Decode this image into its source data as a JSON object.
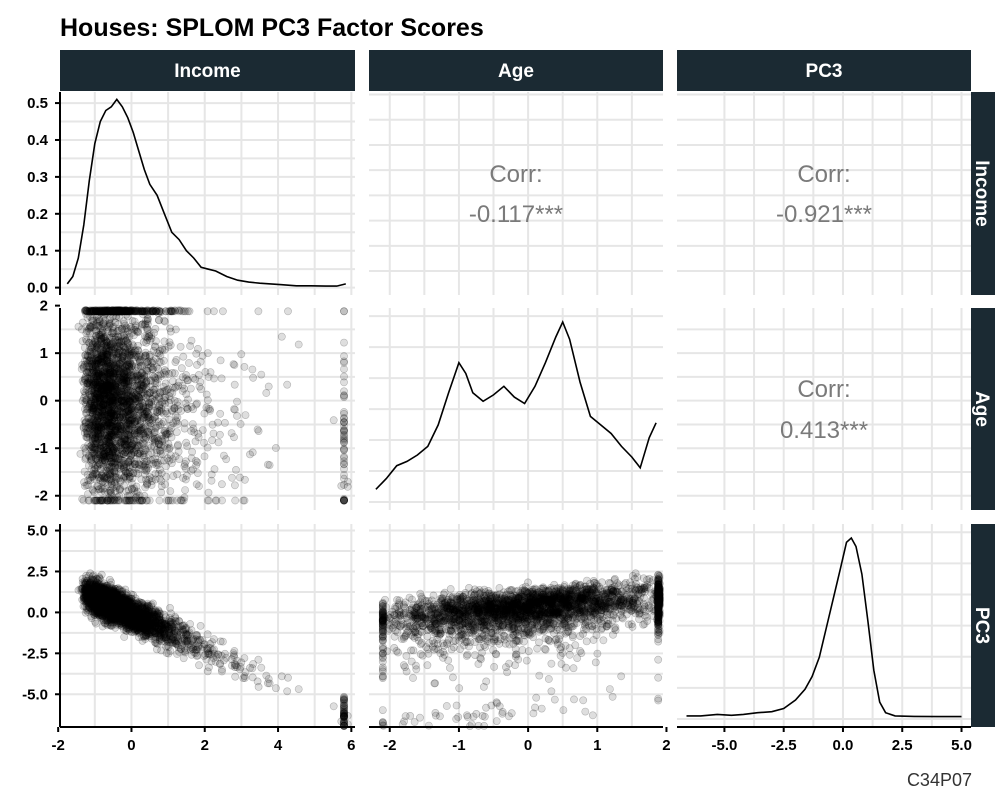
{
  "chart_data": {
    "type": "scatter-matrix",
    "title": "Houses: SPLOM PC3 Factor Scores",
    "caption": "C34P07",
    "variables": [
      "Income",
      "Age",
      "PC3"
    ],
    "strip_labels": {
      "top": [
        "Income",
        "Age",
        "PC3"
      ],
      "right": [
        "Income",
        "Age",
        "PC3"
      ]
    },
    "axes": {
      "Income": {
        "range": [
          -1.95,
          6.1
        ],
        "ticks": [
          -2,
          0,
          2,
          4,
          6
        ],
        "tick_labels": [
          "-2",
          "0",
          "2",
          "4",
          "6"
        ]
      },
      "Age": {
        "range": [
          -2.3,
          1.95
        ],
        "ticks": [
          -2,
          -1,
          0,
          1,
          2
        ],
        "tick_labels": [
          "-2",
          "-1",
          "0",
          "1",
          "2"
        ]
      },
      "PC3": {
        "range": [
          -7.0,
          5.4
        ],
        "ticks": [
          -5,
          -2.5,
          0,
          2.5,
          5
        ],
        "tick_labels": [
          "-5.0",
          "-2.5",
          "0.0",
          "2.5",
          "5.0"
        ]
      },
      "density_income_y": {
        "range": [
          -0.02,
          0.53
        ],
        "ticks": [
          0,
          0.1,
          0.2,
          0.3,
          0.4,
          0.5
        ],
        "tick_labels": [
          "0.0",
          "0.1",
          "0.2",
          "0.3",
          "0.4",
          "0.5"
        ]
      }
    },
    "correlations": [
      {
        "row": "Income",
        "col": "Age",
        "label": "Corr:",
        "value": "-0.117***"
      },
      {
        "row": "Income",
        "col": "PC3",
        "label": "Corr:",
        "value": "-0.921***"
      },
      {
        "row": "Age",
        "col": "PC3",
        "label": "Corr:",
        "value": "0.413***"
      }
    ],
    "densities": {
      "Income": {
        "x": [
          -1.75,
          -1.6,
          -1.45,
          -1.3,
          -1.15,
          -1.0,
          -0.85,
          -0.7,
          -0.55,
          -0.4,
          -0.25,
          -0.1,
          0.05,
          0.2,
          0.35,
          0.5,
          0.7,
          0.9,
          1.1,
          1.3,
          1.5,
          1.7,
          1.9,
          2.1,
          2.3,
          2.6,
          2.9,
          3.2,
          3.5,
          3.8,
          4.1,
          4.5,
          4.9,
          5.3,
          5.6,
          5.85
        ],
        "y": [
          0.01,
          0.03,
          0.08,
          0.17,
          0.29,
          0.39,
          0.45,
          0.48,
          0.49,
          0.51,
          0.49,
          0.46,
          0.42,
          0.37,
          0.32,
          0.28,
          0.25,
          0.2,
          0.15,
          0.13,
          0.1,
          0.08,
          0.055,
          0.05,
          0.045,
          0.03,
          0.02,
          0.015,
          0.012,
          0.01,
          0.008,
          0.005,
          0.005,
          0.004,
          0.004,
          0.01
        ]
      },
      "Age": {
        "x": [
          -2.2,
          -2.05,
          -1.9,
          -1.75,
          -1.6,
          -1.45,
          -1.3,
          -1.15,
          -1.0,
          -0.9,
          -0.8,
          -0.65,
          -0.5,
          -0.35,
          -0.2,
          -0.05,
          0.1,
          0.25,
          0.4,
          0.5,
          0.6,
          0.75,
          0.9,
          1.05,
          1.2,
          1.35,
          1.5,
          1.62,
          1.75,
          1.85
        ],
        "y": [
          0.1,
          0.2,
          0.32,
          0.36,
          0.42,
          0.5,
          0.7,
          1.0,
          1.28,
          1.18,
          1.0,
          0.92,
          0.98,
          1.06,
          0.96,
          0.9,
          1.06,
          1.28,
          1.52,
          1.66,
          1.5,
          1.1,
          0.78,
          0.7,
          0.62,
          0.5,
          0.4,
          0.3,
          0.58,
          0.72
        ]
      },
      "PC3": {
        "x": [
          -6.6,
          -6.0,
          -5.3,
          -4.7,
          -4.2,
          -3.6,
          -3.0,
          -2.5,
          -2.0,
          -1.6,
          -1.3,
          -1.0,
          -0.7,
          -0.4,
          -0.1,
          0.15,
          0.35,
          0.55,
          0.8,
          1.05,
          1.3,
          1.55,
          1.8,
          2.2,
          3.0,
          4.0,
          5.0
        ],
        "y": [
          0.005,
          0.005,
          0.012,
          0.008,
          0.012,
          0.02,
          0.025,
          0.04,
          0.08,
          0.13,
          0.19,
          0.28,
          0.42,
          0.56,
          0.7,
          0.82,
          0.84,
          0.8,
          0.67,
          0.45,
          0.22,
          0.07,
          0.02,
          0.005,
          0.003,
          0.002,
          0.002
        ]
      }
    },
    "scatter": {
      "marker": "semi-transparent circle",
      "approx_n_points": 20000,
      "panels": [
        "Income vs Age",
        "Income vs PC3",
        "Age vs PC3"
      ]
    },
    "grid": true,
    "colors": {
      "strip_background": "#1b2a33",
      "strip_text": "#ffffff",
      "points": "#000000",
      "correlation_text": "#7a7a7a"
    }
  }
}
